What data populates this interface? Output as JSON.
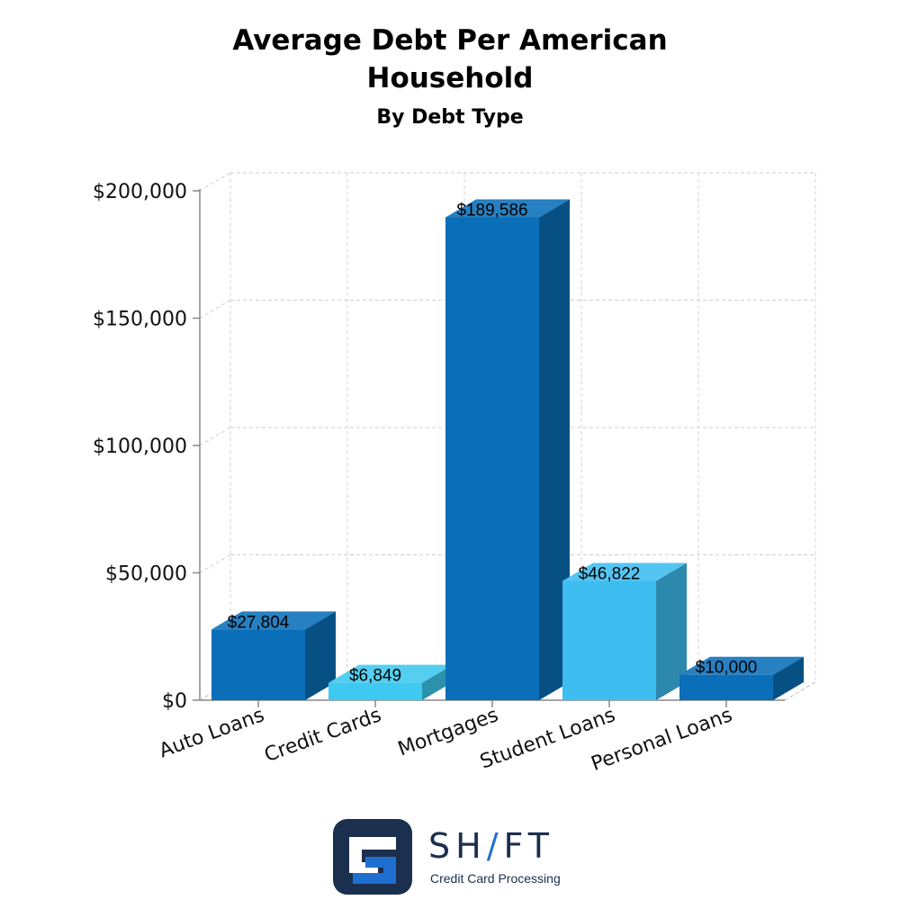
{
  "chart_data": {
    "type": "bar",
    "title_lines": [
      "Average Debt Per American",
      "Household"
    ],
    "subtitle": "By Debt Type",
    "categories": [
      "Auto Loans",
      "Credit Cards",
      "Mortgages",
      "Student Loans",
      "Personal Loans"
    ],
    "values": [
      27804,
      6849,
      189586,
      46822,
      10000
    ],
    "data_labels": [
      "$27,804",
      "$6,849",
      "$189,586",
      "$46,822",
      "$10,000"
    ],
    "bar_colors": [
      "#0a6fb8",
      "#3dc9f0",
      "#0a6fb8",
      "#3dbdf0",
      "#0a6fb8"
    ],
    "yticks": [
      0,
      50000,
      100000,
      150000,
      200000
    ],
    "ytick_labels": [
      "$0",
      "$50,000",
      "$100,000",
      "$150,000",
      "$200,000"
    ],
    "ylim": [
      0,
      200000
    ],
    "xlabel": "",
    "ylabel": "",
    "grid": true,
    "legend": "none",
    "style": "3d"
  },
  "logo": {
    "word_start": "SH",
    "word_slash": "/",
    "word_end": "FT",
    "tagline": "Credit Card Processing",
    "icon": "shift-logo-icon"
  }
}
